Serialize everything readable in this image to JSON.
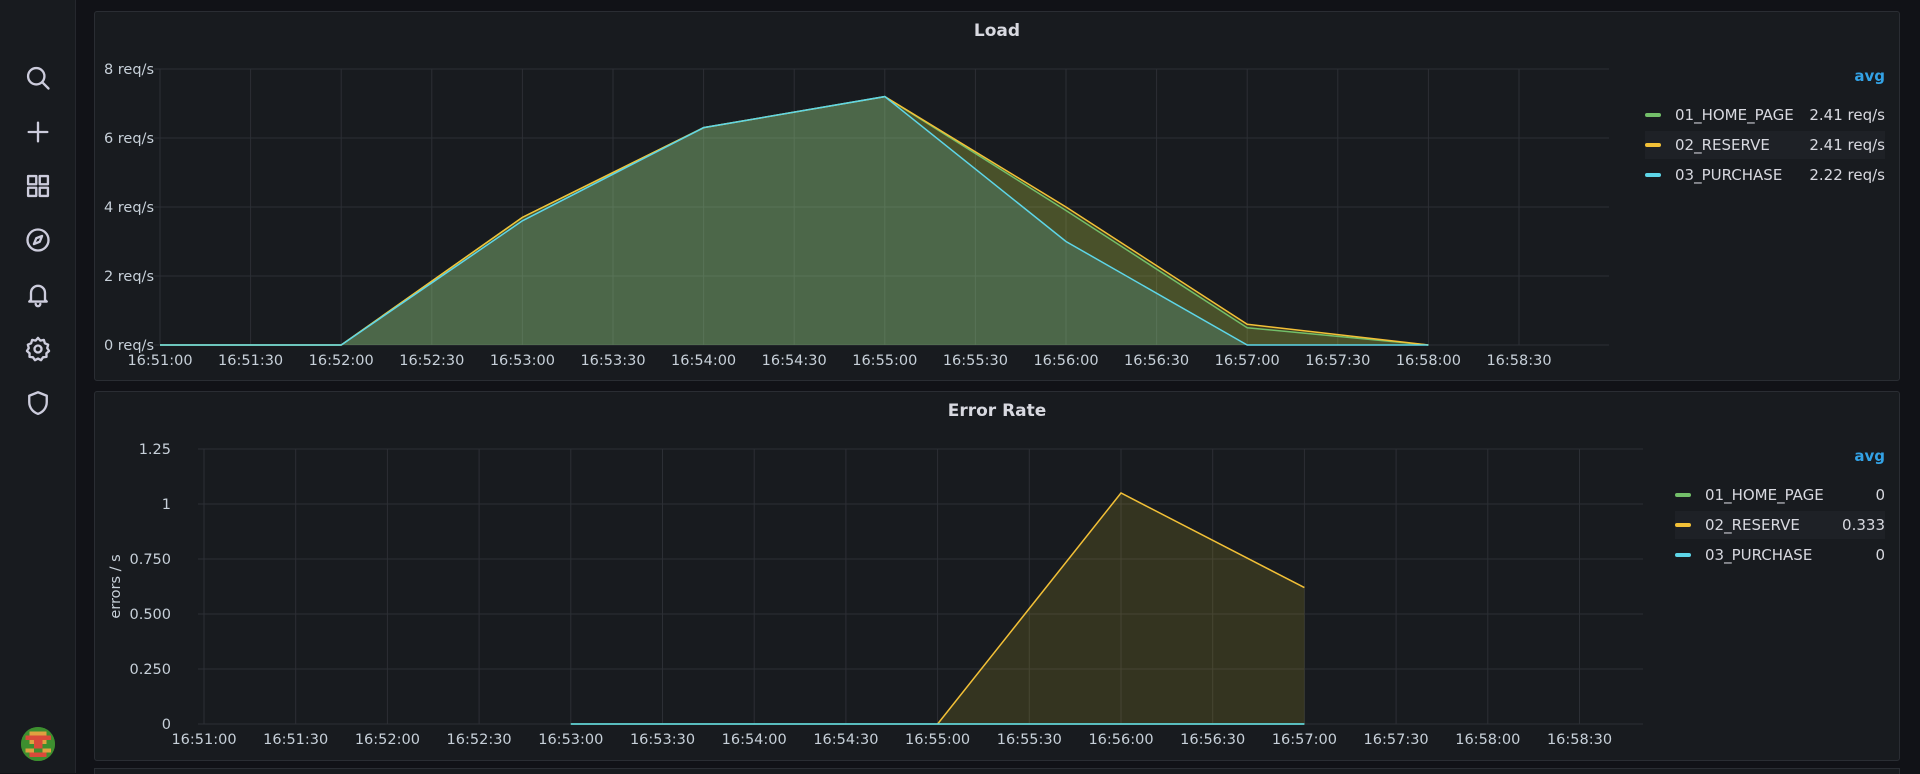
{
  "sidebar": {
    "icons": [
      "search-icon",
      "plus-icon",
      "dashboards-icon",
      "explore-icon",
      "bell-icon",
      "gear-icon",
      "shield-icon"
    ]
  },
  "colors": {
    "home": "#73bf69",
    "reserve": "#fade2a",
    "reserve_line": "#f2c037",
    "purchase": "#5ed6e8"
  },
  "panels": {
    "load": {
      "title": "Load",
      "legend_header": "avg",
      "legend": [
        {
          "name": "01_HOME_PAGE",
          "value": "2.41 req/s",
          "color": "#73bf69"
        },
        {
          "name": "02_RESERVE",
          "value": "2.41 req/s",
          "color": "#f2c037"
        },
        {
          "name": "03_PURCHASE",
          "value": "2.22 req/s",
          "color": "#5ed6e8"
        }
      ]
    },
    "error": {
      "title": "Error Rate",
      "legend_header": "avg",
      "legend": [
        {
          "name": "01_HOME_PAGE",
          "value": "0",
          "color": "#73bf69"
        },
        {
          "name": "02_RESERVE",
          "value": "0.333",
          "color": "#f2c037"
        },
        {
          "name": "03_PURCHASE",
          "value": "0",
          "color": "#5ed6e8"
        }
      ]
    }
  },
  "chart_data": [
    {
      "type": "area",
      "title": "Load",
      "ylabel": "",
      "x": [
        "16:51:00",
        "16:51:30",
        "16:52:00",
        "16:52:30",
        "16:53:00",
        "16:53:30",
        "16:54:00",
        "16:54:30",
        "16:55:00",
        "16:55:30",
        "16:56:00",
        "16:56:30",
        "16:57:00",
        "16:57:30",
        "16:58:00",
        "16:58:30"
      ],
      "ylim": [
        0,
        8
      ],
      "yticks": [
        "0 req/s",
        "2 req/s",
        "4 req/s",
        "6 req/s",
        "8 req/s"
      ],
      "ytick_values": [
        0,
        2,
        4,
        6,
        8
      ],
      "series": [
        {
          "name": "01_HOME_PAGE",
          "points": [
            [
              0,
              0
            ],
            [
              2,
              0
            ],
            [
              4,
              3.7
            ],
            [
              6,
              6.3
            ],
            [
              8,
              7.2
            ],
            [
              10,
              3.9
            ],
            [
              12,
              0.5
            ],
            [
              14,
              0
            ]
          ]
        },
        {
          "name": "02_RESERVE",
          "points": [
            [
              0,
              0
            ],
            [
              2,
              0
            ],
            [
              4,
              3.7
            ],
            [
              6,
              6.3
            ],
            [
              8,
              7.2
            ],
            [
              10,
              4.0
            ],
            [
              12,
              0.6
            ],
            [
              14,
              0
            ]
          ]
        },
        {
          "name": "03_PURCHASE",
          "points": [
            [
              0,
              0
            ],
            [
              2,
              0
            ],
            [
              4,
              3.6
            ],
            [
              6,
              6.3
            ],
            [
              8,
              7.2
            ],
            [
              10,
              3.0
            ],
            [
              12,
              0
            ],
            [
              14,
              0
            ]
          ]
        }
      ],
      "grid": true,
      "legend_position": "right"
    },
    {
      "type": "area",
      "title": "Error Rate",
      "ylabel": "errors / s",
      "x": [
        "16:51:00",
        "16:51:30",
        "16:52:00",
        "16:52:30",
        "16:53:00",
        "16:53:30",
        "16:54:00",
        "16:54:30",
        "16:55:00",
        "16:55:30",
        "16:56:00",
        "16:56:30",
        "16:57:00",
        "16:57:30",
        "16:58:00",
        "16:58:30"
      ],
      "ylim": [
        0,
        1.25
      ],
      "yticks": [
        "0",
        "0.250",
        "0.500",
        "0.750",
        "1",
        "1.25"
      ],
      "ytick_values": [
        0,
        0.25,
        0.5,
        0.75,
        1,
        1.25
      ],
      "series": [
        {
          "name": "01_HOME_PAGE",
          "points": [
            [
              4,
              0
            ],
            [
              8,
              0
            ],
            [
              12,
              0
            ]
          ]
        },
        {
          "name": "02_RESERVE",
          "points": [
            [
              8,
              0
            ],
            [
              10,
              1.05
            ],
            [
              12,
              0.62
            ]
          ]
        },
        {
          "name": "03_PURCHASE",
          "points": [
            [
              4,
              0
            ],
            [
              8,
              0
            ],
            [
              12,
              0
            ]
          ]
        }
      ],
      "grid": true,
      "legend_position": "right"
    }
  ]
}
